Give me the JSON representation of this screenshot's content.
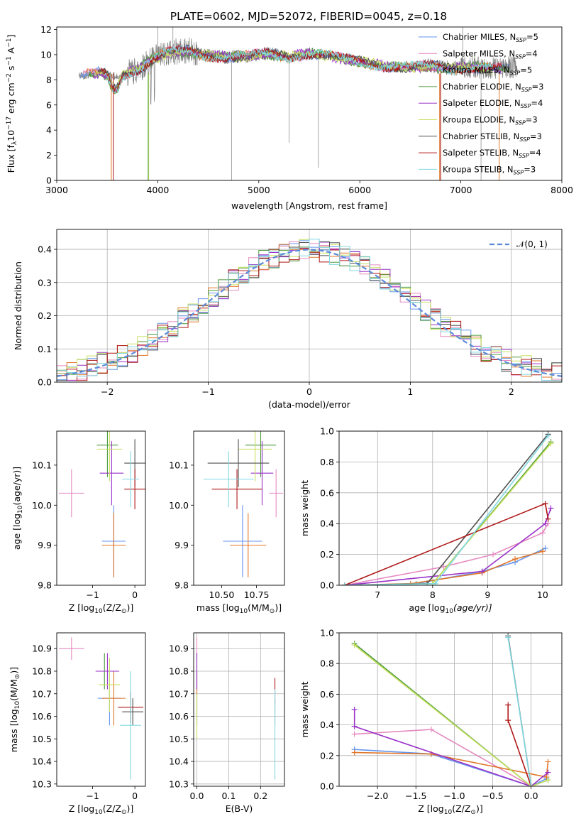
{
  "title": "PLATE=0602, MJD=52072, FIBERID=0045, z=0.18",
  "colors": {
    "chabrier_miles": "#6495ed",
    "salpeter_miles": "#e58ac0",
    "kroupa_miles": "#e0772a",
    "chabrier_elodie": "#4c9a3c",
    "salpeter_elodie": "#9a32c8",
    "kroupa_elodie": "#c8e060",
    "chabrier_stelib": "#505050",
    "salpeter_stelib": "#b01818",
    "kroupa_stelib": "#80d8e0",
    "data": "#808080",
    "normal": "#5b8ad8"
  },
  "chart_data": [
    {
      "id": "spectrum",
      "type": "line",
      "xlabel_text": "wavelength [Angstrom, rest frame]",
      "ylabel_main": "Flux [f",
      "ylabel_lambda": "λ",
      "ylabel_mid": "10",
      "ylabel_exp1": "−17",
      "ylabel_tail1": " erg cm",
      "ylabel_exp2": "−2",
      "ylabel_tail2": " s",
      "ylabel_exp3": "−1",
      "ylabel_tail3": " A",
      "ylabel_exp4": "−1",
      "ylabel_end": "]",
      "xlim": [
        3000,
        8000
      ],
      "ylim": [
        0,
        12.2
      ],
      "xticks": [
        "3000",
        "4000",
        "5000",
        "6000",
        "7000",
        "8000"
      ],
      "yticks": [
        "0",
        "2",
        "4",
        "6",
        "8",
        "10",
        "12"
      ],
      "legend_position": "top-right",
      "legend": [
        {
          "key": "chabrier_miles",
          "label": "Chabrier MILES, N",
          "sub": "SSP",
          "tail": "=5"
        },
        {
          "key": "salpeter_miles",
          "label": "Salpeter MILES, N",
          "sub": "SSP",
          "tail": "=4"
        },
        {
          "key": "kroupa_miles",
          "label": "Kroupa MILES, N",
          "sub": "SSP",
          "tail": "=5"
        },
        {
          "key": "chabrier_elodie",
          "label": "Chabrier ELODIE, N",
          "sub": "SSP",
          "tail": "=3"
        },
        {
          "key": "salpeter_elodie",
          "label": "Salpeter ELODIE, N",
          "sub": "SSP",
          "tail": "=4"
        },
        {
          "key": "kroupa_elodie",
          "label": "Kroupa ELODIE, N",
          "sub": "SSP",
          "tail": "=3"
        },
        {
          "key": "chabrier_stelib",
          "label": "Chabrier STELIB, N",
          "sub": "SSP",
          "tail": "=3"
        },
        {
          "key": "salpeter_stelib",
          "label": "Salpeter STELIB, N",
          "sub": "SSP",
          "tail": "=4"
        },
        {
          "key": "kroupa_stelib",
          "label": "Kroupa STELIB, N",
          "sub": "SSP",
          "tail": "=3"
        }
      ],
      "continuum": [
        [
          3220,
          8.3
        ],
        [
          3400,
          8.6
        ],
        [
          3600,
          8.2
        ],
        [
          3800,
          8.8
        ],
        [
          3950,
          9.6
        ],
        [
          4100,
          10.2
        ],
        [
          4300,
          10.3
        ],
        [
          4500,
          9.9
        ],
        [
          4700,
          9.8
        ],
        [
          4900,
          9.9
        ],
        [
          5100,
          10.1
        ],
        [
          5300,
          9.8
        ],
        [
          5500,
          10.1
        ],
        [
          5700,
          9.9
        ],
        [
          5900,
          9.6
        ],
        [
          6100,
          9.3
        ],
        [
          6300,
          9.0
        ],
        [
          6500,
          9.0
        ],
        [
          6700,
          9.1
        ],
        [
          6900,
          8.9
        ],
        [
          7100,
          9.0
        ],
        [
          7300,
          8.9
        ],
        [
          7500,
          9.0
        ]
      ]
    },
    {
      "id": "residuals",
      "type": "histogram",
      "xlabel": "(data-model)/error",
      "ylabel": "Normed distribution",
      "xlim": [
        -2.5,
        2.5
      ],
      "ylim": [
        0,
        0.46
      ],
      "xticks": [
        "−2",
        "−1",
        "0",
        "1",
        "2"
      ],
      "yticks": [
        "0.0",
        "0.1",
        "0.2",
        "0.3",
        "0.4"
      ],
      "legend_label": "𝒩(0, 1)",
      "legend_position": "top-right",
      "bin_width": 0.1,
      "grid": true
    },
    {
      "id": "age_vs_Z",
      "type": "errorbar",
      "xlabel_main": "Z [log",
      "xlabel_sub": "10",
      "xlabel_tail": "(Z/Z",
      "xlabel_odot": "⊙",
      "xlabel_end": ")]",
      "ylabel_main": "age  [log",
      "ylabel_sub": "10",
      "ylabel_tail": "(age/yr)]",
      "xlim": [
        -1.85,
        0.25
      ],
      "ylim": [
        9.8,
        10.185
      ],
      "xticks": [
        "−1",
        "0"
      ],
      "yticks": [
        "9.8",
        "9.9",
        "10.0",
        "10.1"
      ],
      "points": [
        {
          "key": "chabrier_miles",
          "x": -0.5,
          "xerr": 0.28,
          "y": 9.91,
          "yerr": 0.09
        },
        {
          "key": "salpeter_miles",
          "x": -1.5,
          "xerr": 0.3,
          "y": 10.03,
          "yerr": 0.06
        },
        {
          "key": "kroupa_miles",
          "x": -0.5,
          "xerr": 0.28,
          "y": 9.9,
          "yerr": 0.08
        },
        {
          "key": "chabrier_elodie",
          "x": -0.65,
          "xerr": 0.25,
          "y": 10.15,
          "yerr": 0.08
        },
        {
          "key": "salpeter_elodie",
          "x": -0.55,
          "xerr": 0.28,
          "y": 10.08,
          "yerr": 0.08
        },
        {
          "key": "kroupa_elodie",
          "x": -0.6,
          "xerr": 0.3,
          "y": 10.14,
          "yerr": 0.08
        },
        {
          "key": "chabrier_stelib",
          "x": 0.0,
          "xerr": 0.25,
          "y": 10.105,
          "yerr": 0.06
        },
        {
          "key": "salpeter_stelib",
          "x": 0.0,
          "xerr": 0.25,
          "y": 10.04,
          "yerr": 0.05
        },
        {
          "key": "kroupa_stelib",
          "x": -0.1,
          "xerr": 0.2,
          "y": 10.065,
          "yerr": 0.07
        }
      ]
    },
    {
      "id": "age_vs_mass",
      "type": "errorbar",
      "xlabel_main": "mass [log",
      "xlabel_sub": "10",
      "xlabel_tail": "(M/M",
      "xlabel_odot": "⊙",
      "xlabel_end": ")]",
      "xlim": [
        10.3,
        10.95
      ],
      "ylim": [
        9.8,
        10.185
      ],
      "xticks": [
        "10.50",
        "10.75"
      ],
      "yticks": [
        "9.8",
        "9.9",
        "10.0",
        "10.1"
      ],
      "points": [
        {
          "key": "chabrier_miles",
          "x": 10.65,
          "xerr": 0.14,
          "y": 9.91,
          "yerr": 0.09
        },
        {
          "key": "salpeter_miles",
          "x": 10.89,
          "xerr": 0.05,
          "y": 10.03,
          "yerr": 0.06
        },
        {
          "key": "kroupa_miles",
          "x": 10.69,
          "xerr": 0.13,
          "y": 9.9,
          "yerr": 0.08
        },
        {
          "key": "chabrier_elodie",
          "x": 10.78,
          "xerr": 0.11,
          "y": 10.15,
          "yerr": 0.08
        },
        {
          "key": "salpeter_elodie",
          "x": 10.79,
          "xerr": 0.08,
          "y": 10.08,
          "yerr": 0.08
        },
        {
          "key": "kroupa_elodie",
          "x": 10.74,
          "xerr": 0.12,
          "y": 10.14,
          "yerr": 0.08
        },
        {
          "key": "chabrier_stelib",
          "x": 10.62,
          "xerr": 0.22,
          "y": 10.105,
          "yerr": 0.06
        },
        {
          "key": "salpeter_stelib",
          "x": 10.61,
          "xerr": 0.18,
          "y": 10.04,
          "yerr": 0.05
        },
        {
          "key": "kroupa_stelib",
          "x": 10.55,
          "xerr": 0.18,
          "y": 10.065,
          "yerr": 0.07
        }
      ]
    },
    {
      "id": "mass_weight_vs_age",
      "type": "line",
      "xlabel_main": "age  [log",
      "xlabel_sub": "10",
      "xlabel_tail": "(age/yr)]",
      "ylabel": "mass weight",
      "xlim": [
        6.3,
        10.35
      ],
      "ylim": [
        0,
        1.0
      ],
      "xticks": [
        "7",
        "8",
        "9",
        "10"
      ],
      "yticks": [
        "0.0",
        "0.2",
        "0.4",
        "0.6",
        "0.8",
        "1.0"
      ],
      "grid": true,
      "series": [
        {
          "key": "chabrier_miles",
          "points": [
            [
              6.4,
              0.0
            ],
            [
              7.7,
              0.01
            ],
            [
              8.9,
              0.09
            ],
            [
              9.5,
              0.15
            ],
            [
              10.05,
              0.24
            ]
          ]
        },
        {
          "key": "salpeter_miles",
          "points": [
            [
              6.4,
              0.0
            ],
            [
              8.2,
              0.12
            ],
            [
              9.1,
              0.2
            ],
            [
              10.0,
              0.34
            ],
            [
              10.1,
              0.4
            ]
          ]
        },
        {
          "key": "kroupa_miles",
          "points": [
            [
              6.4,
              0.0
            ],
            [
              7.6,
              0.01
            ],
            [
              8.9,
              0.08
            ],
            [
              9.5,
              0.17
            ],
            [
              10.0,
              0.22
            ]
          ]
        },
        {
          "key": "chabrier_elodie",
          "points": [
            [
              6.4,
              0.0
            ],
            [
              8.0,
              0.01
            ],
            [
              10.15,
              0.93
            ]
          ]
        },
        {
          "key": "salpeter_elodie",
          "points": [
            [
              6.4,
              0.0
            ],
            [
              8.9,
              0.09
            ],
            [
              10.05,
              0.4
            ],
            [
              10.15,
              0.5
            ]
          ]
        },
        {
          "key": "kroupa_elodie",
          "points": [
            [
              6.4,
              0.0
            ],
            [
              8.0,
              0.01
            ],
            [
              10.15,
              0.92
            ]
          ]
        },
        {
          "key": "chabrier_stelib",
          "points": [
            [
              6.4,
              0.0
            ],
            [
              7.9,
              0.01
            ],
            [
              10.1,
              0.98
            ]
          ]
        },
        {
          "key": "salpeter_stelib",
          "points": [
            [
              6.4,
              0.0
            ],
            [
              10.05,
              0.53
            ],
            [
              10.1,
              0.43
            ]
          ]
        },
        {
          "key": "kroupa_stelib",
          "points": [
            [
              6.4,
              0.0
            ],
            [
              8.05,
              0.01
            ],
            [
              10.1,
              0.97
            ]
          ]
        }
      ]
    },
    {
      "id": "mass_vs_Z",
      "type": "errorbar",
      "xlabel_main": "Z [log",
      "xlabel_sub": "10",
      "xlabel_tail": "(Z/Z",
      "xlabel_odot": "⊙",
      "xlabel_end": ")]",
      "ylabel_main": "mass [log",
      "ylabel_sub": "10",
      "ylabel_tail": "(M/M",
      "ylabel_odot": "⊙",
      "ylabel_end": ")]",
      "xlim": [
        -1.85,
        0.25
      ],
      "ylim": [
        10.29,
        10.97
      ],
      "xticks": [
        "−1",
        "0"
      ],
      "yticks": [
        "10.3",
        "10.4",
        "10.5",
        "10.6",
        "10.7",
        "10.8",
        "10.9"
      ],
      "points": [
        {
          "key": "chabrier_miles",
          "x": -0.6,
          "xerr": 0.28,
          "y": 10.68,
          "yerr": 0.12
        },
        {
          "key": "salpeter_miles",
          "x": -1.5,
          "xerr": 0.3,
          "y": 10.9,
          "yerr": 0.05
        },
        {
          "key": "kroupa_miles",
          "x": -0.5,
          "xerr": 0.28,
          "y": 10.68,
          "yerr": 0.12
        },
        {
          "key": "chabrier_elodie",
          "x": -0.72,
          "xerr": 0.2,
          "y": 10.8,
          "yerr": 0.08
        },
        {
          "key": "salpeter_elodie",
          "x": -0.65,
          "xerr": 0.28,
          "y": 10.8,
          "yerr": 0.08
        },
        {
          "key": "kroupa_elodie",
          "x": -0.6,
          "xerr": 0.25,
          "y": 10.74,
          "yerr": 0.12
        },
        {
          "key": "chabrier_stelib",
          "x": -0.05,
          "xerr": 0.25,
          "y": 10.62,
          "yerr": 0.06
        },
        {
          "key": "salpeter_stelib",
          "x": -0.1,
          "xerr": 0.3,
          "y": 10.64,
          "yerr": 0.07
        },
        {
          "key": "kroupa_stelib",
          "x": -0.1,
          "xerr": 0.25,
          "y": 10.56,
          "yerr": 0.24
        }
      ]
    },
    {
      "id": "mass_vs_ebv",
      "type": "errorbar",
      "xlabel": "E(B-V)",
      "xlim": [
        -0.01,
        0.275
      ],
      "ylim": [
        10.29,
        10.97
      ],
      "xticks": [
        "0.0",
        "0.1",
        "0.2"
      ],
      "yticks": [
        "10.3",
        "10.4",
        "10.5",
        "10.6",
        "10.7",
        "10.8",
        "10.9"
      ],
      "grid": true,
      "points": [
        {
          "key": "chabrier_miles",
          "x": 0.0,
          "xerr": 0,
          "y": 10.68,
          "yerr": 0.12
        },
        {
          "key": "salpeter_miles",
          "x": 0.0,
          "xerr": 0,
          "y": 10.9,
          "yerr": 0.05
        },
        {
          "key": "kroupa_miles",
          "x": 0.0,
          "xerr": 0,
          "y": 10.68,
          "yerr": 0.12
        },
        {
          "key": "chabrier_elodie",
          "x": 0.0,
          "xerr": 0,
          "y": 10.8,
          "yerr": 0.08
        },
        {
          "key": "salpeter_elodie",
          "x": 0.0,
          "xerr": 0,
          "y": 10.8,
          "yerr": 0.08
        },
        {
          "key": "kroupa_elodie",
          "x": 0.0,
          "xerr": 0,
          "y": 10.6,
          "yerr": 0.1
        },
        {
          "key": "chabrier_stelib",
          "x": 0.245,
          "xerr": 0,
          "y": 10.62,
          "yerr": 0.06
        },
        {
          "key": "salpeter_stelib",
          "x": 0.245,
          "xerr": 0,
          "y": 10.71,
          "yerr": 0.06
        },
        {
          "key": "kroupa_stelib",
          "x": 0.245,
          "xerr": 0,
          "y": 10.52,
          "yerr": 0.2
        }
      ]
    },
    {
      "id": "mass_weight_vs_Z",
      "type": "line",
      "xlabel_main": "Z [log",
      "xlabel_sub": "10",
      "xlabel_tail": "(Z/Z",
      "xlabel_odot": "⊙",
      "xlabel_end": ")]",
      "ylabel": "mass weight",
      "xlim": [
        -2.5,
        0.4
      ],
      "ylim": [
        0,
        1.0
      ],
      "xticks": [
        "−2.0",
        "−1.5",
        "−1.0",
        "−0.5",
        "0.0"
      ],
      "yticks": [
        "0.0",
        "0.2",
        "0.4",
        "0.6",
        "0.8",
        "1.0"
      ],
      "grid": true,
      "series": [
        {
          "key": "chabrier_miles",
          "points": [
            [
              -2.3,
              0.24
            ],
            [
              -1.3,
              0.21
            ],
            [
              0.0,
              0.0
            ],
            [
              0.2,
              0.05
            ]
          ]
        },
        {
          "key": "salpeter_miles",
          "points": [
            [
              -2.3,
              0.34
            ],
            [
              -1.3,
              0.37
            ],
            [
              0.0,
              0.0
            ]
          ]
        },
        {
          "key": "kroupa_miles",
          "points": [
            [
              -2.3,
              0.22
            ],
            [
              -1.3,
              0.21
            ],
            [
              0.2,
              0.06
            ],
            [
              0.22,
              0.16
            ]
          ]
        },
        {
          "key": "chabrier_elodie",
          "points": [
            [
              -2.3,
              0.93
            ],
            [
              0.0,
              0.0
            ],
            [
              0.22,
              0.04
            ]
          ]
        },
        {
          "key": "salpeter_elodie",
          "points": [
            [
              -2.3,
              0.5
            ],
            [
              -2.3,
              0.39
            ],
            [
              0.0,
              0.0
            ],
            [
              0.22,
              0.09
            ]
          ]
        },
        {
          "key": "kroupa_elodie",
          "points": [
            [
              -2.3,
              0.92
            ],
            [
              0.0,
              0.0
            ],
            [
              0.22,
              0.04
            ]
          ]
        },
        {
          "key": "chabrier_stelib",
          "points": [
            [
              -0.3,
              0.98
            ],
            [
              0.0,
              0.0
            ]
          ]
        },
        {
          "key": "salpeter_stelib",
          "points": [
            [
              -0.3,
              0.53
            ],
            [
              -0.3,
              0.43
            ],
            [
              0.0,
              0.0
            ]
          ]
        },
        {
          "key": "kroupa_stelib",
          "points": [
            [
              -0.3,
              0.97
            ],
            [
              0.0,
              0.0
            ]
          ]
        }
      ]
    }
  ]
}
